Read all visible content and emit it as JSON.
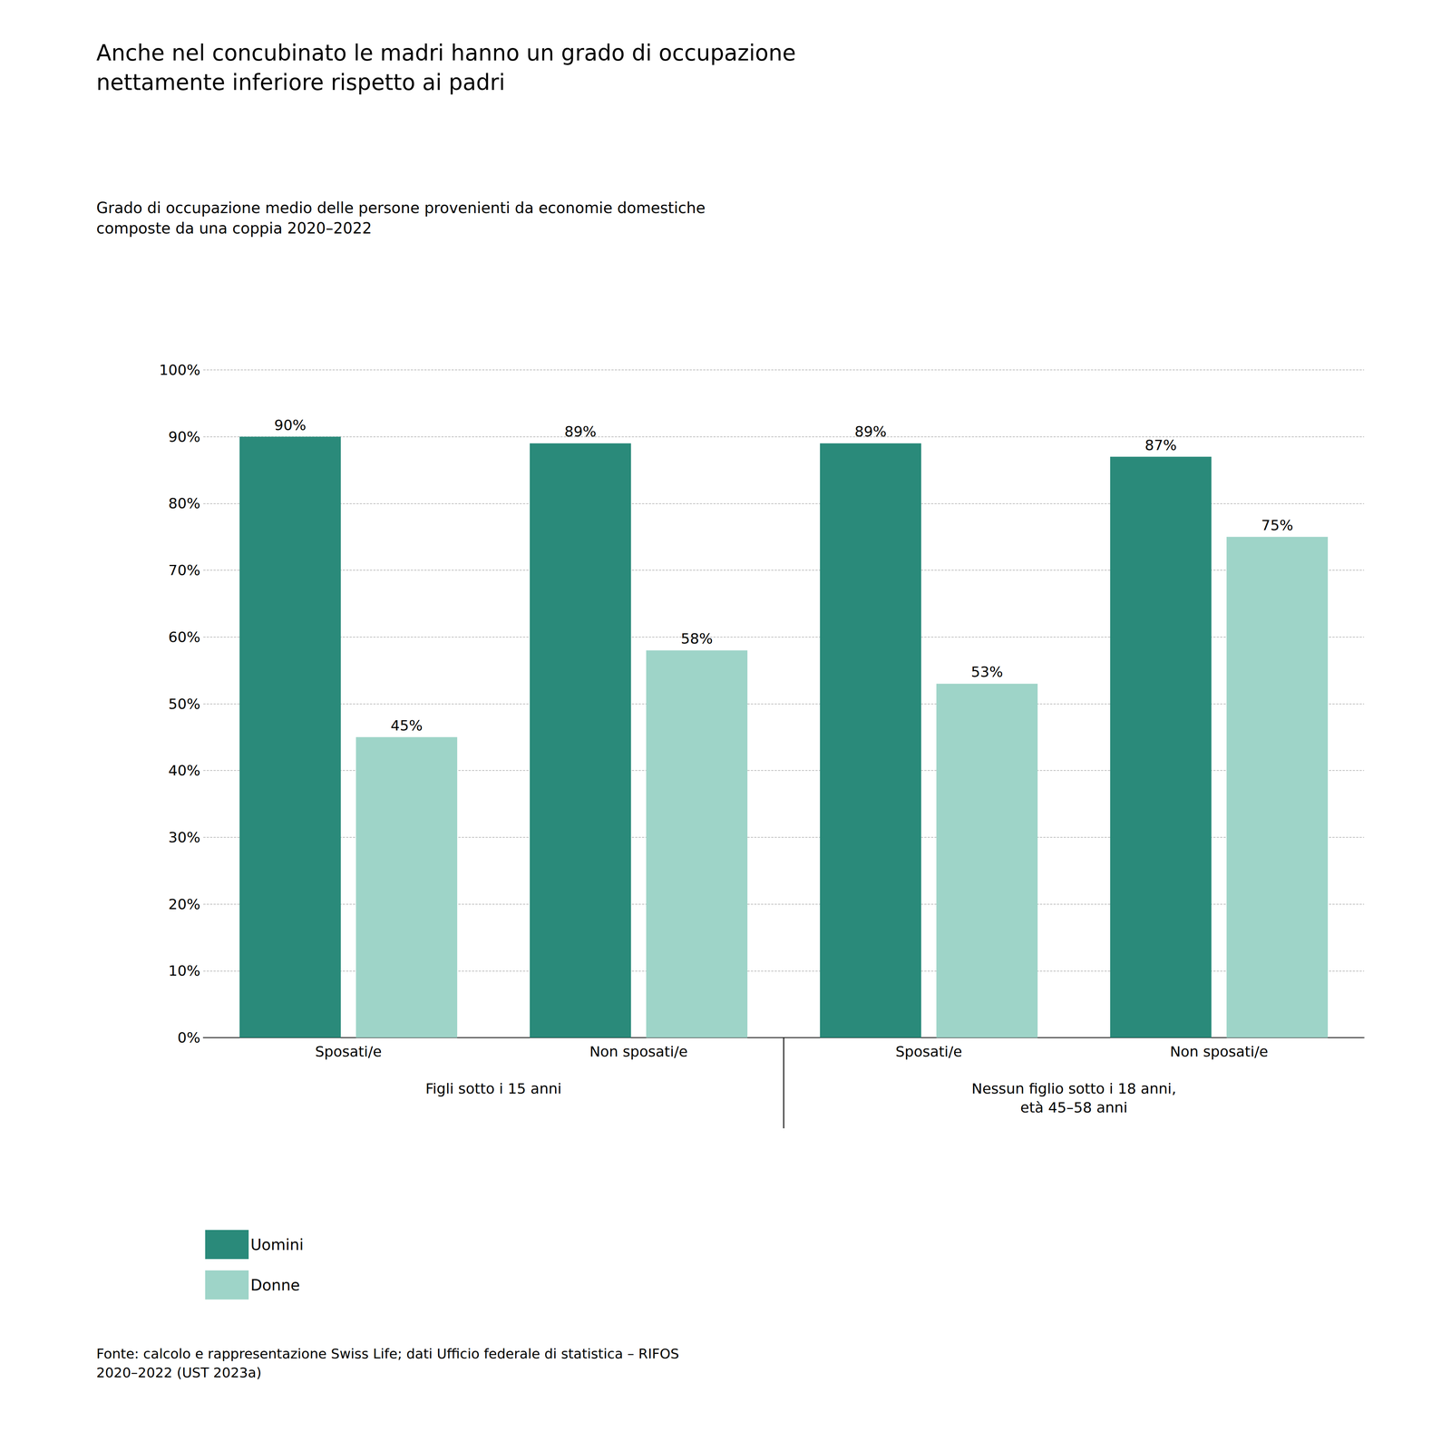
{
  "chart_data": {
    "type": "bar",
    "title": "Anche nel concubinato le madri hanno un grado di occupazione\nnettamente inferiore rispetto ai padri",
    "subtitle": "Grado di occupazione medio delle persone provenienti da economie domestiche\ncomposte da una coppia 2020–2022",
    "categories": [
      "Sposati/e",
      "Non sposati/e",
      "Sposati/e",
      "Non sposati/e"
    ],
    "series": [
      {
        "name": "Uomini",
        "color": "#2a8a7a",
        "values": [
          90,
          89,
          89,
          87
        ],
        "value_labels": [
          "90%",
          "89%",
          "89%",
          "87%"
        ]
      },
      {
        "name": "Donne",
        "color": "#9ed4c8",
        "values": [
          45,
          58,
          53,
          75
        ],
        "value_labels": [
          "45%",
          "58%",
          "53%",
          "75%"
        ]
      }
    ],
    "ylim": [
      0,
      100
    ],
    "yticks": [
      {
        "value": 0,
        "label": "0%"
      },
      {
        "value": 10,
        "label": "10%"
      },
      {
        "value": 20,
        "label": "20%"
      },
      {
        "value": 30,
        "label": "30%"
      },
      {
        "value": 40,
        "label": "40%"
      },
      {
        "value": 50,
        "label": "50%"
      },
      {
        "value": 60,
        "label": "60%"
      },
      {
        "value": 70,
        "label": "70%"
      },
      {
        "value": 80,
        "label": "80%"
      },
      {
        "value": 90,
        "label": "90%"
      },
      {
        "value": 100,
        "label": "100%"
      }
    ],
    "grid": true,
    "data_labels": true,
    "legend": "bottom",
    "annotations": [
      "Figli sotto i 15 anni",
      "Nessun figlio sotto i 18 anni,\netà 45–58 anni"
    ],
    "source": "Fonte: calcolo e rappresentazione Swiss Life; dati Ufficio federale di statistica – RIFOS\n2020–2022 (UST 2023a)"
  }
}
